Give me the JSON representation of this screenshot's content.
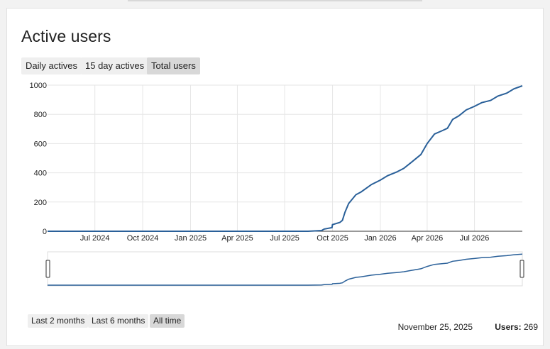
{
  "header": {
    "title": "Active users"
  },
  "metric_tabs": [
    {
      "label": "Daily actives",
      "active": false
    },
    {
      "label": "15 day actives",
      "active": false
    },
    {
      "label": "Total users",
      "active": true
    }
  ],
  "range_buttons": [
    {
      "label": "Last 2 months",
      "active": false
    },
    {
      "label": "Last 6 months",
      "active": false
    },
    {
      "label": "All time",
      "active": true
    }
  ],
  "status": {
    "date": "November 25, 2025",
    "users_label": "Users:",
    "users_value": "269"
  },
  "colors": {
    "line": "#2a6099",
    "grid": "#e6e6e6",
    "axis": "#333333"
  },
  "chart_data": {
    "type": "line",
    "title": "",
    "xlabel": "",
    "ylabel": "",
    "ylim": [
      0,
      1000
    ],
    "yticks": [
      "0",
      "200",
      "400",
      "600",
      "800",
      "1000"
    ],
    "xticks": [
      "Jul 2024",
      "Oct 2024",
      "Jan 2025",
      "Apr 2025",
      "Jul 2025",
      "Oct 2025",
      "Jan 2026",
      "Apr 2026",
      "Jul 2026"
    ],
    "xlim": [
      "2024-04-01",
      "2026-10-01"
    ],
    "grid": true,
    "series": [
      {
        "x": [
          "2024-04-01",
          "2025-08-15",
          "2025-09-10",
          "2025-09-15",
          "2025-09-30",
          "2025-10-01",
          "2025-10-15",
          "2025-10-20",
          "2025-10-25",
          "2025-11-01",
          "2025-11-15",
          "2025-11-25",
          "2025-12-15",
          "2026-01-01",
          "2026-01-15",
          "2026-02-01",
          "2026-02-15",
          "2026-03-01",
          "2026-03-20",
          "2026-04-01",
          "2026-04-15",
          "2026-05-01",
          "2026-05-10",
          "2026-05-20",
          "2026-06-01",
          "2026-06-15",
          "2026-07-01",
          "2026-07-15",
          "2026-08-01",
          "2026-08-15",
          "2026-09-01",
          "2026-09-15",
          "2026-10-01"
        ],
        "y": [
          0,
          0,
          5,
          15,
          25,
          45,
          60,
          75,
          130,
          190,
          250,
          269,
          320,
          350,
          380,
          405,
          430,
          470,
          525,
          600,
          665,
          690,
          705,
          765,
          790,
          830,
          855,
          880,
          895,
          925,
          945,
          975,
          995
        ]
      }
    ]
  }
}
